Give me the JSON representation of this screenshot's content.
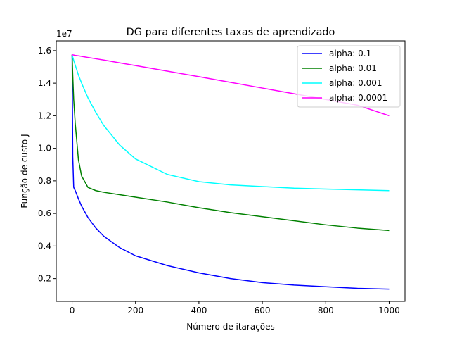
{
  "chart_data": {
    "type": "line",
    "title": "DG para diferentes taxas de aprendizado",
    "xlabel": "Número de itarações",
    "ylabel": "Função de custo J",
    "y_offset_label": "1e7",
    "xlim": [
      -50,
      1050
    ],
    "ylim": [
      0.06,
      1.66
    ],
    "y_scale_multiplier": 10000000,
    "xticks": [
      0,
      200,
      400,
      600,
      800,
      1000
    ],
    "xtick_labels": [
      "0",
      "200",
      "400",
      "600",
      "800",
      "1000"
    ],
    "yticks": [
      0.2,
      0.4,
      0.6,
      0.8,
      1.0,
      1.2,
      1.4,
      1.6
    ],
    "ytick_labels": [
      "0.2",
      "0.4",
      "0.6",
      "0.8",
      "1.0",
      "1.2",
      "1.4",
      "1.6"
    ],
    "grid": false,
    "legend_position": "top-right",
    "x": [
      0,
      2,
      5,
      10,
      20,
      30,
      50,
      75,
      100,
      150,
      200,
      300,
      400,
      500,
      600,
      700,
      800,
      900,
      1000
    ],
    "series": [
      {
        "name": "alpha: 0.1",
        "color": "#0000ff",
        "values": [
          1.575,
          0.95,
          0.76,
          0.74,
          0.69,
          0.645,
          0.575,
          0.51,
          0.46,
          0.39,
          0.34,
          0.28,
          0.235,
          0.2,
          0.175,
          0.16,
          0.15,
          0.14,
          0.135
        ]
      },
      {
        "name": "alpha: 0.01",
        "color": "#008000",
        "values": [
          1.575,
          1.45,
          1.3,
          1.15,
          0.93,
          0.83,
          0.76,
          0.74,
          0.73,
          0.715,
          0.7,
          0.67,
          0.635,
          0.605,
          0.58,
          0.555,
          0.53,
          0.51,
          0.495
        ]
      },
      {
        "name": "alpha: 0.001",
        "color": "#00ffff",
        "values": [
          1.575,
          1.56,
          1.54,
          1.51,
          1.45,
          1.4,
          1.31,
          1.22,
          1.14,
          1.02,
          0.935,
          0.84,
          0.795,
          0.775,
          0.765,
          0.755,
          0.75,
          0.745,
          0.74
        ]
      },
      {
        "name": "alpha: 0.0001",
        "color": "#ff00ff",
        "values": [
          1.575,
          1.574,
          1.573,
          1.571,
          1.568,
          1.565,
          1.558,
          1.55,
          1.542,
          1.525,
          1.508,
          1.474,
          1.44,
          1.405,
          1.37,
          1.335,
          1.3,
          1.265,
          1.2
        ]
      }
    ]
  }
}
